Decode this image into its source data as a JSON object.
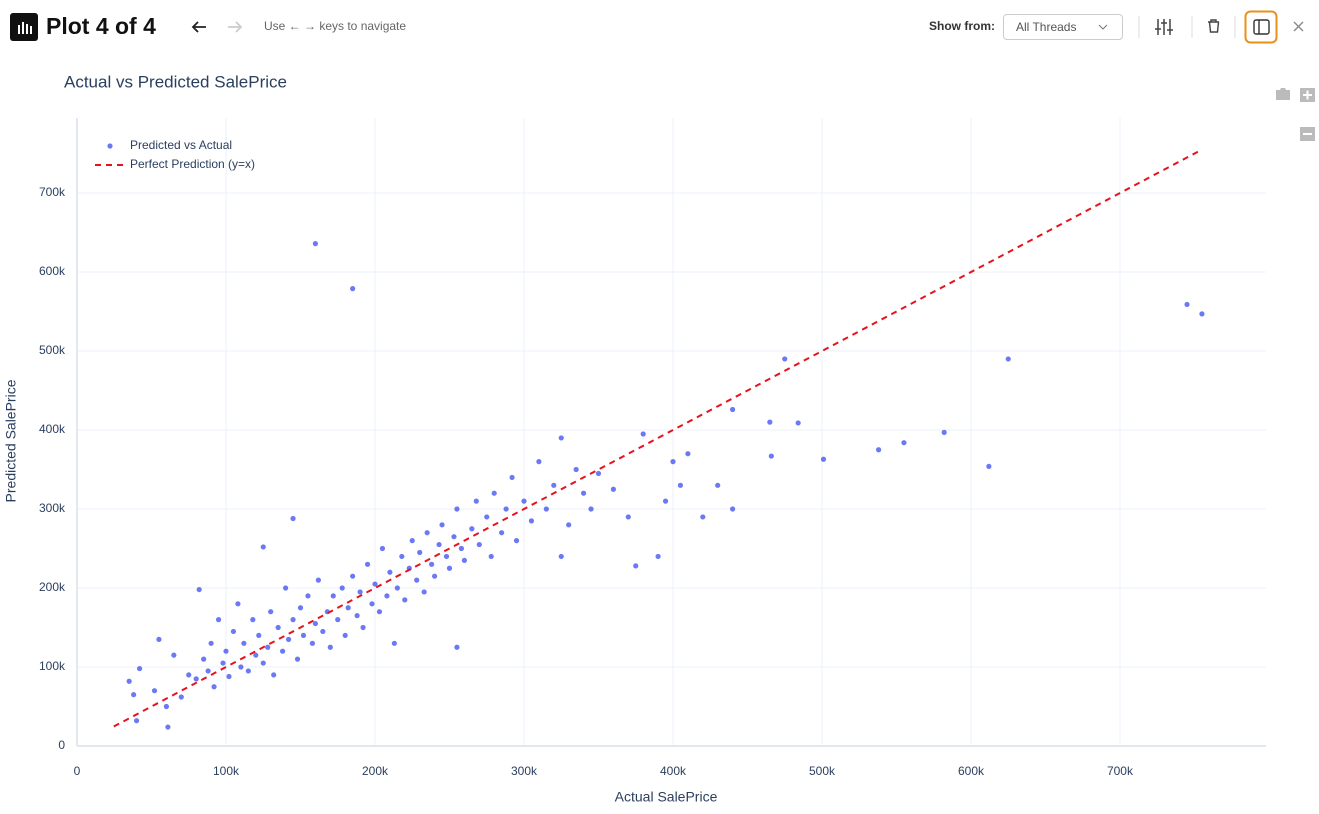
{
  "header": {
    "title": "Plot 4 of 4",
    "hint": "Use ← → keys to navigate",
    "show_from_label": "Show from:",
    "show_from_value": "All Threads"
  },
  "chart_data": {
    "type": "scatter",
    "title": "Actual vs Predicted SalePrice",
    "x_label": "Actual SalePrice",
    "y_label": "Predicted SalePrice",
    "xlim": [
      0,
      798000
    ],
    "ylim": [
      0,
      795000
    ],
    "xticks": [
      0,
      {
        "value": 100000,
        "label": "100k"
      },
      {
        "value": 200000,
        "label": "200k"
      },
      {
        "value": 300000,
        "label": "300k"
      },
      {
        "value": 400000,
        "label": "400k"
      },
      {
        "value": 500000,
        "label": "500k"
      },
      {
        "value": 600000,
        "label": "600k"
      },
      {
        "value": 700000,
        "label": "700k"
      }
    ],
    "yticks": [
      0,
      {
        "value": 100000,
        "label": "100k"
      },
      {
        "value": 200000,
        "label": "200k"
      },
      {
        "value": 300000,
        "label": "300k"
      },
      {
        "value": 400000,
        "label": "400k"
      },
      {
        "value": 500000,
        "label": "500k"
      },
      {
        "value": 600000,
        "label": "600k"
      },
      {
        "value": 700000,
        "label": "700k"
      }
    ],
    "grid": true,
    "legend": "upper left",
    "series": [
      {
        "name": "Predicted vs Actual",
        "color": "#3a4cf2",
        "mode": "markers",
        "x": [
          35000,
          38000,
          42000,
          55000,
          52000,
          60000,
          65000,
          70000,
          75000,
          80000,
          82000,
          85000,
          88000,
          90000,
          92000,
          95000,
          98000,
          100000,
          102000,
          105000,
          108000,
          110000,
          112000,
          115000,
          118000,
          120000,
          122000,
          125000,
          125000,
          128000,
          130000,
          132000,
          135000,
          138000,
          140000,
          142000,
          145000,
          148000,
          150000,
          152000,
          155000,
          158000,
          160000,
          162000,
          165000,
          168000,
          170000,
          172000,
          175000,
          178000,
          180000,
          182000,
          185000,
          188000,
          190000,
          192000,
          195000,
          198000,
          200000,
          203000,
          205000,
          208000,
          210000,
          213000,
          215000,
          218000,
          220000,
          223000,
          225000,
          228000,
          230000,
          233000,
          235000,
          238000,
          240000,
          243000,
          245000,
          248000,
          250000,
          253000,
          255000,
          258000,
          260000,
          265000,
          268000,
          270000,
          275000,
          278000,
          280000,
          285000,
          288000,
          292000,
          295000,
          300000,
          305000,
          310000,
          315000,
          320000,
          325000,
          325000,
          330000,
          335000,
          340000,
          345000,
          350000,
          360000,
          370000,
          375000,
          380000,
          390000,
          395000,
          400000,
          405000,
          410000,
          420000,
          430000,
          440000,
          160000,
          185000,
          745000,
          755000,
          625000,
          475000,
          582000,
          612000,
          555000,
          538000,
          501000,
          484000,
          465000,
          440000,
          466000,
          255000,
          145000,
          61000,
          40000
        ],
        "values": [
          82000,
          65000,
          98000,
          135000,
          70000,
          50000,
          115000,
          62000,
          90000,
          85000,
          198000,
          110000,
          95000,
          130000,
          75000,
          160000,
          105000,
          120000,
          88000,
          145000,
          180000,
          100000,
          130000,
          95000,
          160000,
          115000,
          140000,
          252000,
          105000,
          125000,
          170000,
          90000,
          150000,
          120000,
          200000,
          135000,
          160000,
          110000,
          175000,
          140000,
          190000,
          130000,
          155000,
          210000,
          145000,
          170000,
          125000,
          190000,
          160000,
          200000,
          140000,
          175000,
          215000,
          165000,
          195000,
          150000,
          230000,
          180000,
          205000,
          170000,
          250000,
          190000,
          220000,
          130000,
          200000,
          240000,
          185000,
          225000,
          260000,
          210000,
          245000,
          195000,
          270000,
          230000,
          215000,
          255000,
          280000,
          240000,
          225000,
          265000,
          300000,
          250000,
          235000,
          275000,
          310000,
          255000,
          290000,
          240000,
          320000,
          270000,
          300000,
          340000,
          260000,
          310000,
          285000,
          360000,
          300000,
          330000,
          390000,
          240000,
          280000,
          350000,
          320000,
          300000,
          345000,
          325000,
          290000,
          228000,
          395000,
          240000,
          310000,
          360000,
          330000,
          370000,
          290000,
          330000,
          300000,
          636000,
          579000,
          559000,
          547000,
          490000,
          490000,
          397000,
          354000,
          384000,
          375000,
          363000,
          409000,
          410000,
          426000,
          367000,
          125000,
          288000,
          24000,
          32000
        ]
      },
      {
        "name": "Perfect Prediction (y=x)",
        "color": "#e5131d",
        "mode": "lines",
        "dash": "6,5",
        "x": [
          24700,
          755000
        ],
        "values": [
          24700,
          755000
        ]
      }
    ]
  }
}
